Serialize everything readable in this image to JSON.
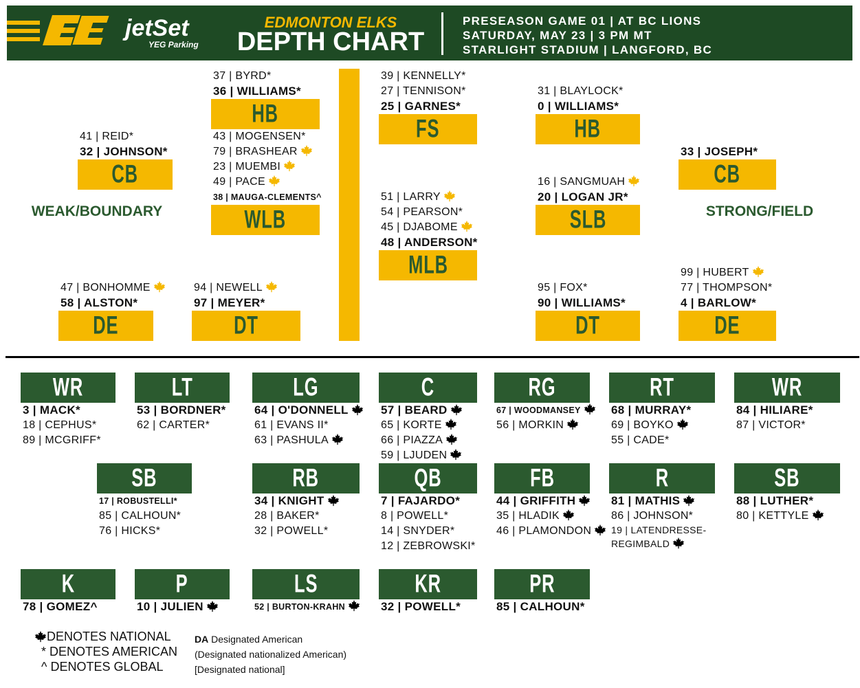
{
  "header": {
    "team": "EDMONTON ELKS",
    "title": "DEPTH CHART",
    "sponsor": "jetSet",
    "sponsor_sub": "YEG Parking",
    "game": [
      "PRESEASON GAME 01 | AT BC LIONS",
      "SATURDAY, MAY 23 | 3 PM MT",
      "STARLIGHT STADIUM | LANGFORD, BC"
    ]
  },
  "defense": {
    "labels": [
      "WEAK/BOUNDARY",
      "STRONG/FIELD"
    ],
    "positions": [
      {
        "pos": "HB",
        "players": [
          {
            "name": "37 | BYRD*"
          },
          {
            "name": "36 | WILLIAMS*"
          }
        ]
      },
      {
        "pos": "CB",
        "players": [
          {
            "name": "41 | REID*"
          },
          {
            "name": "32 | JOHNSON*"
          }
        ]
      },
      {
        "pos": "WLB",
        "players": [
          {
            "name": "43 | MOGENSEN*"
          },
          {
            "name": "79 | BRASHEAR",
            "leaf": true
          },
          {
            "name": "23 | MUEMBI",
            "leaf": true
          },
          {
            "name": "49 | PACE",
            "leaf": true
          },
          {
            "name": "38 | MAUGA-CLEMENTS^"
          }
        ]
      },
      {
        "pos": "FS",
        "players": [
          {
            "name": "39 | KENNELLY*"
          },
          {
            "name": "27 | TENNISON*"
          },
          {
            "name": "25 | GARNES*"
          }
        ]
      },
      {
        "pos": "MLB",
        "players": [
          {
            "name": "51 | LARRY",
            "leaf": true
          },
          {
            "name": "54 | PEARSON*"
          },
          {
            "name": "45 | DJABOME",
            "leaf": true
          },
          {
            "name": "48 | ANDERSON*"
          }
        ]
      },
      {
        "pos": "HB",
        "players": [
          {
            "name": "31 | BLAYLOCK*"
          },
          {
            "name": "0 | WILLIAMS*"
          }
        ]
      },
      {
        "pos": "SLB",
        "players": [
          {
            "name": "16 | SANGMUAH",
            "leaf": true
          },
          {
            "name": "20 | LOGAN JR*"
          }
        ]
      },
      {
        "pos": "CB",
        "players": [
          {
            "name": "33 | JOSEPH*"
          }
        ]
      },
      {
        "pos": "DE",
        "players": [
          {
            "name": "47 | BONHOMME",
            "leaf": true
          },
          {
            "name": "58 | ALSTON*"
          }
        ]
      },
      {
        "pos": "DT",
        "players": [
          {
            "name": "94 | NEWELL",
            "leaf": true
          },
          {
            "name": "97 | MEYER*"
          }
        ]
      },
      {
        "pos": "DT",
        "players": [
          {
            "name": "95 | FOX*"
          },
          {
            "name": "90 | WILLIAMS*"
          }
        ]
      },
      {
        "pos": "DE",
        "players": [
          {
            "name": "99 | HUBERT",
            "leaf": true
          },
          {
            "name": "77 | THOMPSON*"
          },
          {
            "name": "4 | BARLOW*"
          }
        ]
      }
    ]
  },
  "offense": {
    "positions": [
      {
        "pos": "WR",
        "players": [
          {
            "name": "3 | MACK*"
          },
          {
            "name": "18 | CEPHUS*"
          },
          {
            "name": "89 | MCGRIFF*"
          }
        ]
      },
      {
        "pos": "LT",
        "players": [
          {
            "name": "53 | BORDNER*"
          },
          {
            "name": "62 | CARTER*"
          }
        ]
      },
      {
        "pos": "LG",
        "players": [
          {
            "name": "64 | O'DONNELL",
            "leaf": true
          },
          {
            "name": "61 | EVANS II*"
          },
          {
            "name": "63 | PASHULA",
            "leaf": true
          }
        ]
      },
      {
        "pos": "C",
        "players": [
          {
            "name": "57 | BEARD",
            "leaf": true
          },
          {
            "name": "65 | KORTE",
            "leaf": true
          },
          {
            "name": "66 | PIAZZA",
            "leaf": true
          },
          {
            "name": "59 | LJUDEN",
            "leaf": true
          }
        ]
      },
      {
        "pos": "RG",
        "players": [
          {
            "name": "67 | WOODMANSEY",
            "leaf": true
          },
          {
            "name": "56 | MORKIN",
            "leaf": true
          }
        ]
      },
      {
        "pos": "RT",
        "players": [
          {
            "name": "68 | MURRAY*"
          },
          {
            "name": "69 | BOYKO",
            "leaf": true
          },
          {
            "name": "55 | CADE*"
          }
        ]
      },
      {
        "pos": "WR",
        "players": [
          {
            "name": "84 | HILIARE*"
          },
          {
            "name": "87 | VICTOR*"
          }
        ]
      },
      {
        "pos": "SB",
        "players": [
          {
            "name": "17 | ROBUSTELLI*"
          },
          {
            "name": "85 | CALHOUN*"
          },
          {
            "name": "76 | HICKS*"
          }
        ]
      },
      {
        "pos": "RB",
        "players": [
          {
            "name": "34 | KNIGHT",
            "leaf": true
          },
          {
            "name": "28 | BAKER*"
          },
          {
            "name": "32 | POWELL*"
          }
        ]
      },
      {
        "pos": "QB",
        "players": [
          {
            "name": "7 | FAJARDO*"
          },
          {
            "name": "8 | POWELL*"
          },
          {
            "name": "14 | SNYDER*"
          },
          {
            "name": "12 | ZEBROWSKI*"
          }
        ]
      },
      {
        "pos": "FB",
        "players": [
          {
            "name": "44 | GRIFFITH",
            "leaf": true
          },
          {
            "name": "35 | HLADIK",
            "leaf": true
          },
          {
            "name": "46 | PLAMONDON",
            "leaf": true
          }
        ]
      },
      {
        "pos": "R",
        "players": [
          {
            "name": "81 | MATHIS",
            "leaf": true
          },
          {
            "name": "86 | JOHNSON*"
          },
          {
            "name": "19 | LATENDRESSE-REGIMBALD",
            "leaf": true
          }
        ]
      },
      {
        "pos": "SB",
        "players": [
          {
            "name": "88 | LUTHER*"
          },
          {
            "name": "80 | KETTYLE",
            "leaf": true
          }
        ]
      },
      {
        "pos": "K",
        "players": [
          {
            "name": "78 | GOMEZ^"
          }
        ]
      },
      {
        "pos": "P",
        "players": [
          {
            "name": "10 | JULIEN",
            "leaf": true
          }
        ]
      },
      {
        "pos": "LS",
        "players": [
          {
            "name": "52 | BURTON-KRAHN",
            "leaf": true
          }
        ]
      },
      {
        "pos": "KR",
        "players": [
          {
            "name": "32 | POWELL*"
          }
        ]
      },
      {
        "pos": "PR",
        "players": [
          {
            "name": "85 | CALHOUN*"
          }
        ]
      }
    ]
  },
  "legend": {
    "national": "DENOTES NATIONAL",
    "american": "* DENOTES AMERICAN",
    "global": "^ DENOTES GLOBAL",
    "da_abbr": "DA",
    "da": "Designated American",
    "dna": "(Designated nationalized American)",
    "dn": "[Designated national]"
  }
}
